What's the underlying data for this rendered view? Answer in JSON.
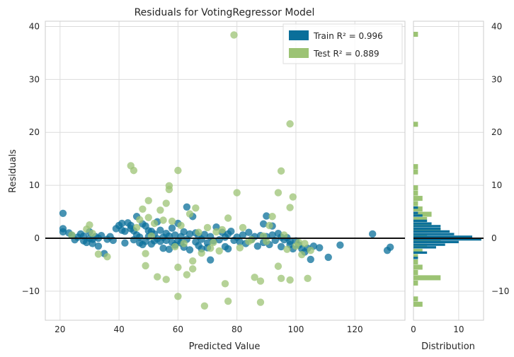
{
  "chart_data": [
    {
      "type": "scatter",
      "title": "Residuals for VotingRegressor Model",
      "xlabel": "Predicted Value",
      "ylabel": "Residuals",
      "xlim": [
        15,
        137
      ],
      "ylim": [
        -15.5,
        41
      ],
      "xticks": [
        "20",
        "40",
        "60",
        "80",
        "100",
        "120"
      ],
      "yticks": [
        "−10",
        "0",
        "10",
        "20",
        "30",
        "40"
      ],
      "grid": true,
      "legend_position": "top-right",
      "legend": [
        {
          "label": "Train R² = 0.996",
          "color": "#0a6f9a"
        },
        {
          "label": "Test R² = 0.889",
          "color": "#9cc374"
        }
      ],
      "reference_line_y": 0,
      "series": [
        {
          "name": "Train R² = 0.996",
          "color": "#0a6f9a",
          "points": [
            [
              21,
              4.7
            ],
            [
              21,
              1.8
            ],
            [
              21,
              1.2
            ],
            [
              23,
              1.0
            ],
            [
              24,
              0.5
            ],
            [
              25,
              -0.3
            ],
            [
              26,
              0.2
            ],
            [
              27,
              0.8
            ],
            [
              28,
              -0.5
            ],
            [
              28,
              0.4
            ],
            [
              29,
              -0.8
            ],
            [
              30,
              0.0
            ],
            [
              30,
              1.2
            ],
            [
              31,
              -0.2
            ],
            [
              31,
              -1.0
            ],
            [
              32,
              0.3
            ],
            [
              33,
              -1.5
            ],
            [
              33,
              0.0
            ],
            [
              34,
              0.5
            ],
            [
              35,
              -2.9
            ],
            [
              36,
              -0.2
            ],
            [
              37,
              0.3
            ],
            [
              38,
              -0.4
            ],
            [
              39,
              1.8
            ],
            [
              40,
              2.4
            ],
            [
              41,
              1.5
            ],
            [
              41,
              2.8
            ],
            [
              42,
              -0.9
            ],
            [
              42,
              1.3
            ],
            [
              43,
              2.9
            ],
            [
              44,
              2.4
            ],
            [
              44,
              1.8
            ],
            [
              45,
              1.4
            ],
            [
              45,
              -0.3
            ],
            [
              46,
              0.6
            ],
            [
              46,
              4.1
            ],
            [
              47,
              -0.9
            ],
            [
              47,
              0.2
            ],
            [
              48,
              2.7
            ],
            [
              48,
              -1.2
            ],
            [
              49,
              -0.6
            ],
            [
              49,
              2.3
            ],
            [
              50,
              1.4
            ],
            [
              50,
              0.3
            ],
            [
              51,
              -1.1
            ],
            [
              51,
              1.3
            ],
            [
              52,
              -0.5
            ],
            [
              52,
              0.8
            ],
            [
              53,
              -0.1
            ],
            [
              53,
              3.1
            ],
            [
              54,
              1.5
            ],
            [
              54,
              -0.6
            ],
            [
              55,
              0.2
            ],
            [
              55,
              -1.9
            ],
            [
              56,
              0.9
            ],
            [
              56,
              -0.4
            ],
            [
              57,
              0.4
            ],
            [
              57,
              -2.1
            ],
            [
              58,
              -0.8
            ],
            [
              58,
              1.9
            ],
            [
              59,
              0.6
            ],
            [
              59,
              -1.3
            ],
            [
              60,
              -0.5
            ],
            [
              60,
              2.8
            ],
            [
              61,
              0.3
            ],
            [
              61,
              -0.9
            ],
            [
              62,
              1.2
            ],
            [
              62,
              -1.7
            ],
            [
              63,
              5.9
            ],
            [
              63,
              -0.2
            ],
            [
              64,
              0.8
            ],
            [
              64,
              -2.2
            ],
            [
              65,
              4.1
            ],
            [
              66,
              -0.7
            ],
            [
              66,
              1.0
            ],
            [
              67,
              -1.4
            ],
            [
              67,
              0.4
            ],
            [
              68,
              -0.2
            ],
            [
              68,
              -2.0
            ],
            [
              69,
              0.7
            ],
            [
              70,
              -0.9
            ],
            [
              70,
              -1.8
            ],
            [
              71,
              0.3
            ],
            [
              71,
              -4.1
            ],
            [
              72,
              -0.5
            ],
            [
              73,
              2.1
            ],
            [
              74,
              -0.3
            ],
            [
              75,
              1.1
            ],
            [
              76,
              -1.6
            ],
            [
              76,
              0.2
            ],
            [
              77,
              0.8
            ],
            [
              77,
              -2.0
            ],
            [
              78,
              1.3
            ],
            [
              79,
              -0.4
            ],
            [
              80,
              0.2
            ],
            [
              81,
              -0.7
            ],
            [
              82,
              0.6
            ],
            [
              83,
              -1.0
            ],
            [
              84,
              1.1
            ],
            [
              85,
              -0.2
            ],
            [
              86,
              0.3
            ],
            [
              87,
              -1.5
            ],
            [
              88,
              0.5
            ],
            [
              89,
              2.7
            ],
            [
              89,
              -0.8
            ],
            [
              90,
              4.2
            ],
            [
              90,
              0.3
            ],
            [
              91,
              -1.2
            ],
            [
              92,
              0.6
            ],
            [
              92,
              2.3
            ],
            [
              93,
              -0.4
            ],
            [
              94,
              0.9
            ],
            [
              95,
              -1.6
            ],
            [
              95,
              0.2
            ],
            [
              96,
              -0.3
            ],
            [
              97,
              0.1
            ],
            [
              98,
              -1.2
            ],
            [
              98,
              -0.6
            ],
            [
              99,
              -2.0
            ],
            [
              100,
              -0.5
            ],
            [
              101,
              -1.3
            ],
            [
              102,
              -2.0
            ],
            [
              103,
              -2.6
            ],
            [
              104,
              -1.9
            ],
            [
              105,
              -4.0
            ],
            [
              106,
              -1.5
            ],
            [
              108,
              -1.8
            ],
            [
              111,
              -3.6
            ],
            [
              115,
              -1.3
            ],
            [
              126,
              0.8
            ],
            [
              131,
              -2.3
            ],
            [
              132,
              -1.7
            ]
          ]
        },
        {
          "name": "Test R² = 0.889",
          "color": "#9cc374",
          "points": [
            [
              24,
              0.6
            ],
            [
              29,
              1.7
            ],
            [
              30,
              2.5
            ],
            [
              31,
              0.9
            ],
            [
              33,
              -3.0
            ],
            [
              36,
              -3.5
            ],
            [
              44,
              13.7
            ],
            [
              45,
              12.8
            ],
            [
              46,
              2.0
            ],
            [
              47,
              3.5
            ],
            [
              48,
              5.5
            ],
            [
              49,
              -2.9
            ],
            [
              49,
              -5.2
            ],
            [
              50,
              7.1
            ],
            [
              50,
              3.9
            ],
            [
              51,
              0.4
            ],
            [
              52,
              2.8
            ],
            [
              53,
              -7.3
            ],
            [
              54,
              5.3
            ],
            [
              55,
              3.4
            ],
            [
              56,
              -7.8
            ],
            [
              56,
              6.6
            ],
            [
              57,
              9.9
            ],
            [
              57,
              9.2
            ],
            [
              58,
              3.2
            ],
            [
              59,
              -1.6
            ],
            [
              60,
              -11.0
            ],
            [
              60,
              12.8
            ],
            [
              60,
              -5.5
            ],
            [
              61,
              2.4
            ],
            [
              62,
              -1.0
            ],
            [
              63,
              -6.9
            ],
            [
              64,
              4.6
            ],
            [
              65,
              -4.3
            ],
            [
              65,
              -5.8
            ],
            [
              66,
              5.7
            ],
            [
              67,
              1.1
            ],
            [
              68,
              -2.8
            ],
            [
              69,
              -12.8
            ],
            [
              70,
              2.0
            ],
            [
              71,
              -1.9
            ],
            [
              72,
              -0.8
            ],
            [
              73,
              1.2
            ],
            [
              74,
              -2.4
            ],
            [
              75,
              1.6
            ],
            [
              76,
              -8.6
            ],
            [
              77,
              -11.9
            ],
            [
              77,
              3.8
            ],
            [
              79,
              38.4
            ],
            [
              80,
              8.6
            ],
            [
              81,
              -1.8
            ],
            [
              82,
              2.0
            ],
            [
              84,
              -0.6
            ],
            [
              85,
              -0.3
            ],
            [
              86,
              -7.4
            ],
            [
              88,
              -12.1
            ],
            [
              88,
              -8.1
            ],
            [
              89,
              0.4
            ],
            [
              90,
              -0.6
            ],
            [
              91,
              2.4
            ],
            [
              92,
              4.1
            ],
            [
              94,
              8.6
            ],
            [
              94,
              -5.3
            ],
            [
              95,
              12.7
            ],
            [
              95,
              -7.6
            ],
            [
              96,
              0.6
            ],
            [
              97,
              -2.1
            ],
            [
              98,
              21.6
            ],
            [
              98,
              5.8
            ],
            [
              98,
              -7.9
            ],
            [
              99,
              7.8
            ],
            [
              100,
              -1.5
            ],
            [
              101,
              -0.8
            ],
            [
              102,
              -3.1
            ],
            [
              103,
              -1.0
            ],
            [
              104,
              -7.6
            ],
            [
              105,
              -2.3
            ]
          ]
        }
      ]
    },
    {
      "type": "bar",
      "orientation": "horizontal",
      "xlabel": "Distribution",
      "xlim": [
        0,
        15.5
      ],
      "ylim": [
        -15.5,
        41
      ],
      "xticks": [
        "0",
        "10"
      ],
      "yticks": [
        "−10",
        "0",
        "10",
        "20",
        "30",
        "40"
      ],
      "grid": true,
      "series": [
        {
          "name": "Test R² = 0.889",
          "color": "#9cc374",
          "bins": [
            [
              -13,
              -12,
              2
            ],
            [
              -12,
              -11,
              1
            ],
            [
              -9,
              -8,
              1
            ],
            [
              -8,
              -7,
              6
            ],
            [
              -7,
              -6,
              1
            ],
            [
              -6,
              -5,
              2
            ],
            [
              -5,
              -4,
              1
            ],
            [
              -4,
              -3,
              1
            ],
            [
              -3,
              -2,
              2
            ],
            [
              -2,
              -1,
              3
            ],
            [
              -1,
              0,
              6
            ],
            [
              0,
              1,
              3
            ],
            [
              1,
              2,
              6
            ],
            [
              2,
              3,
              4
            ],
            [
              3,
              4,
              3
            ],
            [
              4,
              5,
              4
            ],
            [
              5,
              6,
              2
            ],
            [
              6,
              7,
              1
            ],
            [
              7,
              8,
              2
            ],
            [
              8,
              9,
              1
            ],
            [
              9,
              10,
              1
            ],
            [
              10,
              11,
              0
            ],
            [
              12,
              13,
              1
            ],
            [
              13,
              14,
              1
            ],
            [
              21,
              22,
              1
            ],
            [
              38,
              39,
              1
            ]
          ]
        },
        {
          "name": "Train R² = 0.996",
          "color": "#0a6f9a",
          "bins": [
            [
              -4,
              -3.5,
              1
            ],
            [
              -3,
              -2.5,
              3
            ],
            [
              -2,
              -1.5,
              5
            ],
            [
              -1.5,
              -1,
              7
            ],
            [
              -1,
              -0.5,
              10
            ],
            [
              -0.5,
              0,
              15
            ],
            [
              0,
              0.5,
              13
            ],
            [
              0.5,
              1,
              9
            ],
            [
              1,
              1.5,
              8
            ],
            [
              1.5,
              2,
              6
            ],
            [
              2,
              2.5,
              6
            ],
            [
              2.5,
              3,
              4
            ],
            [
              3,
              3.5,
              3
            ],
            [
              4,
              4.5,
              2
            ],
            [
              4.5,
              5,
              1
            ],
            [
              5.5,
              6,
              1
            ]
          ]
        }
      ]
    }
  ]
}
